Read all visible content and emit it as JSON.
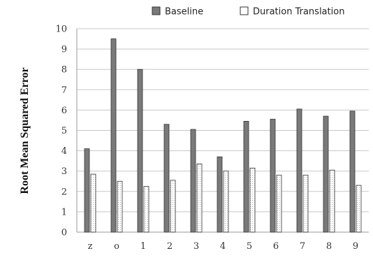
{
  "chart_data": {
    "type": "bar",
    "ylabel": "Root Mean Squared Error",
    "xlabel": "",
    "ylim": [
      0,
      10
    ],
    "yticks": [
      "0",
      "1",
      "2",
      "3",
      "4",
      "5",
      "6",
      "7",
      "8",
      "9",
      "10"
    ],
    "grid": true,
    "legend_position": "top-right",
    "categories": [
      "z",
      "o",
      "1",
      "2",
      "3",
      "4",
      "5",
      "6",
      "7",
      "8",
      "9"
    ],
    "series": [
      {
        "name": "Baseline",
        "color": "#7a7a7a",
        "values": [
          4.1,
          9.5,
          8.0,
          5.3,
          5.05,
          3.7,
          5.45,
          5.55,
          6.05,
          5.7,
          5.95
        ]
      },
      {
        "name": "Duration Translation",
        "color": "#ffffff",
        "values": [
          2.85,
          2.5,
          2.25,
          2.55,
          3.35,
          3.0,
          3.15,
          2.8,
          2.8,
          3.05,
          2.3
        ]
      }
    ]
  }
}
